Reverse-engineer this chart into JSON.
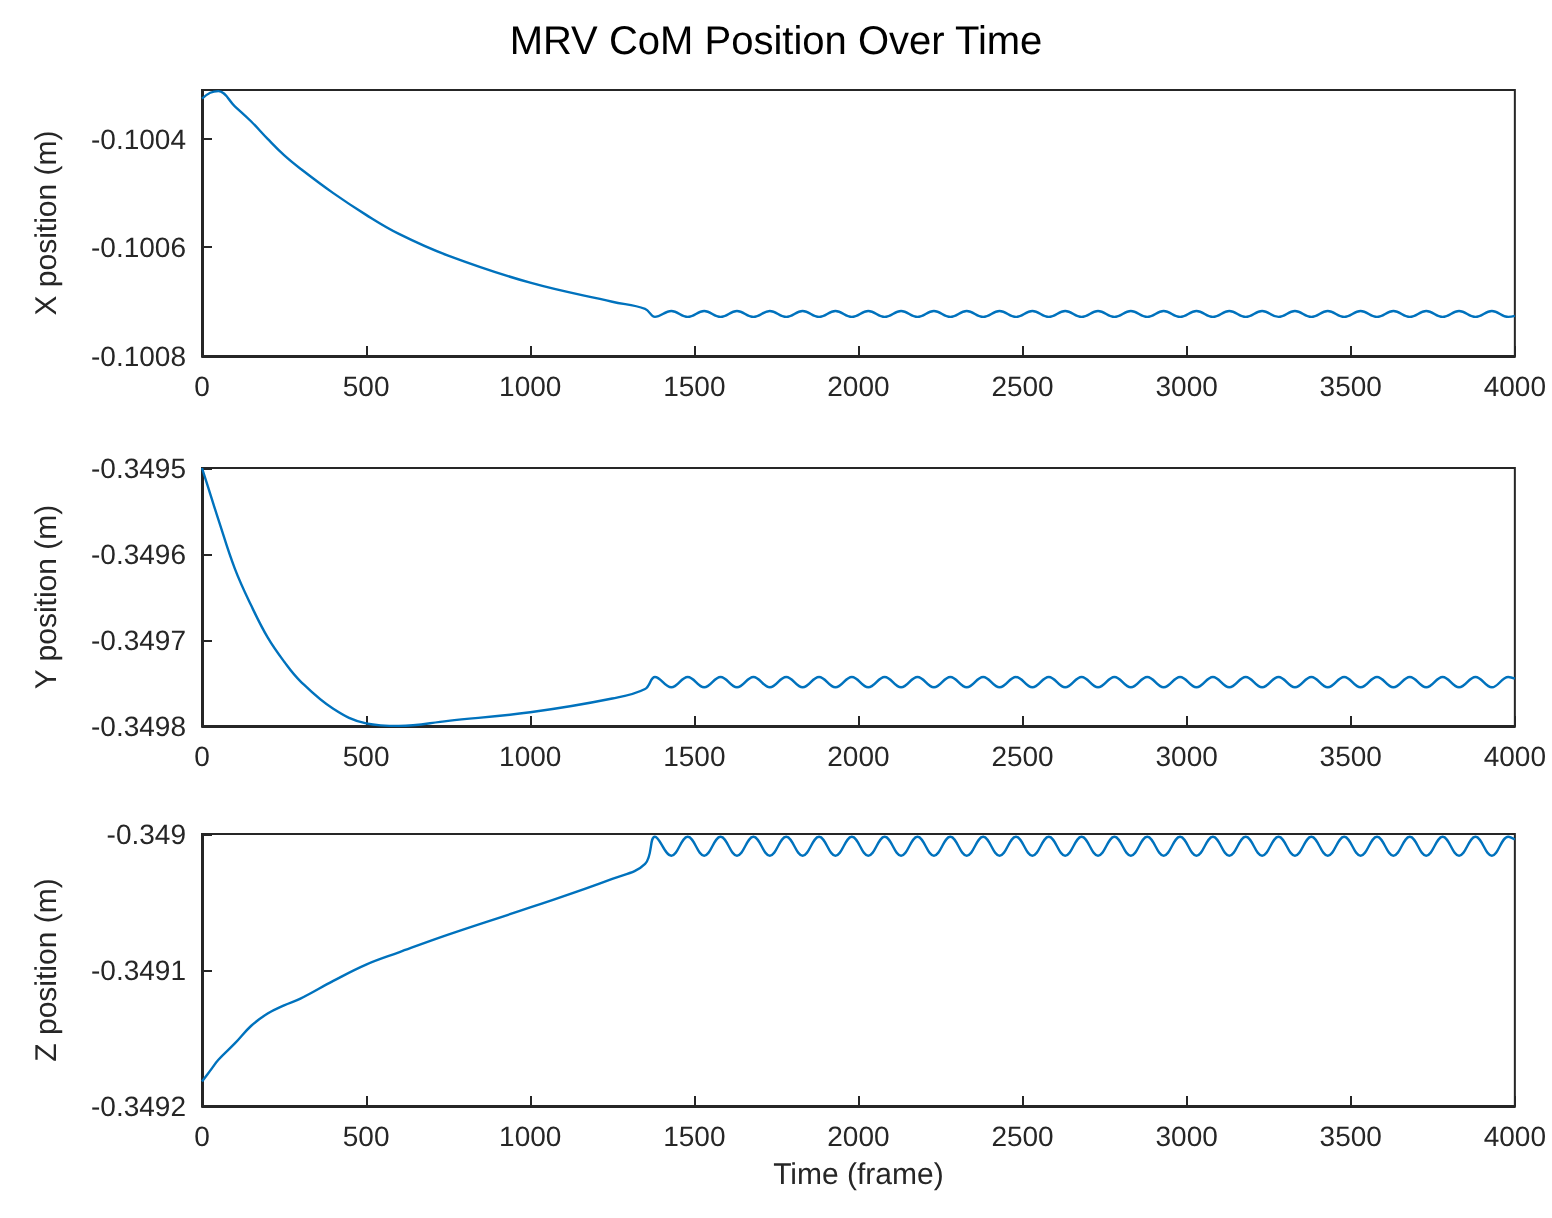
{
  "chart_data": [
    {
      "type": "line",
      "title": "MRV CoM Position Over Time",
      "ylabel": "X position (m)",
      "xlim": [
        0,
        4000
      ],
      "xticks": [
        0,
        500,
        1000,
        1500,
        2000,
        2500,
        3000,
        3500,
        4000
      ],
      "ylim": [
        -0.1008,
        -0.10031
      ],
      "yticks": [
        -0.1008,
        -0.1006,
        -0.1004
      ],
      "x": [
        0,
        25,
        50,
        100,
        150,
        200,
        250,
        300,
        400,
        500,
        600,
        750,
        1000,
        1250,
        1350,
        1380,
        1430,
        1480,
        1530,
        1580,
        1630,
        1680,
        1730,
        1780,
        1830,
        1880,
        1930,
        1980,
        2030,
        2080,
        2130,
        2180,
        2230,
        2280,
        2330,
        2380,
        2430,
        2480,
        2530,
        2580,
        2630,
        2680,
        2730,
        2780,
        2830,
        2880,
        2930,
        2980,
        3030,
        3080,
        3130,
        3180,
        3230,
        3280,
        3330,
        3380,
        3430,
        3480,
        3530,
        3580,
        3630,
        3680,
        3730,
        3780,
        3830,
        3880,
        3930,
        3980,
        4000
      ],
      "series": [
        {
          "color": "#0072bd",
          "values": [
            -0.100326,
            -0.100315,
            -0.100312,
            -0.10034,
            -0.100368,
            -0.1004,
            -0.10043,
            -0.100455,
            -0.1005,
            -0.10054,
            -0.100575,
            -0.100615,
            -0.100665,
            -0.1007,
            -0.100713,
            -0.100728,
            -0.100717,
            -0.100728,
            -0.100717,
            -0.100728,
            -0.100717,
            -0.100728,
            -0.100717,
            -0.100728,
            -0.100717,
            -0.100728,
            -0.100717,
            -0.100728,
            -0.100717,
            -0.100728,
            -0.100717,
            -0.100728,
            -0.100717,
            -0.100728,
            -0.100717,
            -0.100728,
            -0.100717,
            -0.100728,
            -0.100717,
            -0.100728,
            -0.100717,
            -0.100728,
            -0.100717,
            -0.100728,
            -0.100717,
            -0.100728,
            -0.100717,
            -0.100728,
            -0.100717,
            -0.100728,
            -0.100717,
            -0.100728,
            -0.100717,
            -0.100728,
            -0.100717,
            -0.100728,
            -0.100717,
            -0.100728,
            -0.100717,
            -0.100728,
            -0.100717,
            -0.100728,
            -0.100717,
            -0.100728,
            -0.100717,
            -0.100728,
            -0.100717,
            -0.100728,
            -0.100726
          ]
        }
      ]
    },
    {
      "type": "line",
      "ylabel": "Y position (m)",
      "xlim": [
        0,
        4000
      ],
      "xticks": [
        0,
        500,
        1000,
        1500,
        2000,
        2500,
        3000,
        3500,
        4000
      ],
      "ylim": [
        -0.3498,
        -0.3495
      ],
      "yticks": [
        -0.3498,
        -0.3497,
        -0.3496,
        -0.3495
      ],
      "x": [
        0,
        25,
        50,
        100,
        150,
        200,
        250,
        300,
        400,
        500,
        600,
        750,
        1000,
        1250,
        1350,
        1380,
        1430,
        1480,
        1530,
        1580,
        1630,
        1680,
        1730,
        1780,
        1830,
        1880,
        1930,
        1980,
        2030,
        2080,
        2130,
        2180,
        2230,
        2280,
        2330,
        2380,
        2430,
        2480,
        2530,
        2580,
        2630,
        2680,
        2730,
        2780,
        2830,
        2880,
        2930,
        2980,
        3030,
        3080,
        3130,
        3180,
        3230,
        3280,
        3330,
        3380,
        3430,
        3480,
        3530,
        3580,
        3630,
        3680,
        3730,
        3780,
        3830,
        3880,
        3930,
        3980,
        4000
      ],
      "series": [
        {
          "color": "#0072bd",
          "values": [
            -0.3495,
            -0.34953,
            -0.34956,
            -0.349617,
            -0.34966,
            -0.349697,
            -0.349725,
            -0.349748,
            -0.34978,
            -0.349797,
            -0.3498,
            -0.349794,
            -0.349784,
            -0.349768,
            -0.349757,
            -0.349743,
            -0.349755,
            -0.349743,
            -0.349755,
            -0.349743,
            -0.349755,
            -0.349743,
            -0.349755,
            -0.349743,
            -0.349755,
            -0.349743,
            -0.349755,
            -0.349743,
            -0.349755,
            -0.349743,
            -0.349755,
            -0.349743,
            -0.349755,
            -0.349743,
            -0.349755,
            -0.349743,
            -0.349755,
            -0.349743,
            -0.349755,
            -0.349743,
            -0.349755,
            -0.349743,
            -0.349755,
            -0.349743,
            -0.349755,
            -0.349743,
            -0.349755,
            -0.349743,
            -0.349755,
            -0.349743,
            -0.349755,
            -0.349743,
            -0.349755,
            -0.349743,
            -0.349755,
            -0.349743,
            -0.349755,
            -0.349743,
            -0.349755,
            -0.349743,
            -0.349755,
            -0.349743,
            -0.349755,
            -0.349743,
            -0.349755,
            -0.349743,
            -0.349755,
            -0.349743,
            -0.349745
          ]
        }
      ]
    },
    {
      "type": "line",
      "ylabel": "Z position (m)",
      "xlabel": "Time (frame)",
      "xlim": [
        0,
        4000
      ],
      "xticks": [
        0,
        500,
        1000,
        1500,
        2000,
        2500,
        3000,
        3500,
        4000
      ],
      "ylim": [
        -0.3492,
        -0.349
      ],
      "yticks": [
        -0.3492,
        -0.3491,
        -0.349
      ],
      "x": [
        0,
        25,
        50,
        100,
        150,
        200,
        250,
        300,
        400,
        500,
        600,
        750,
        1000,
        1250,
        1350,
        1380,
        1430,
        1480,
        1530,
        1580,
        1630,
        1680,
        1730,
        1780,
        1830,
        1880,
        1930,
        1980,
        2030,
        2080,
        2130,
        2180,
        2230,
        2280,
        2330,
        2380,
        2430,
        2480,
        2530,
        2580,
        2630,
        2680,
        2730,
        2780,
        2830,
        2880,
        2930,
        2980,
        3030,
        3080,
        3130,
        3180,
        3230,
        3280,
        3330,
        3380,
        3430,
        3480,
        3530,
        3580,
        3630,
        3680,
        3730,
        3780,
        3830,
        3880,
        3930,
        3980,
        4000
      ],
      "series": [
        {
          "color": "#0072bd",
          "values": [
            -0.349182,
            -0.349174,
            -0.349166,
            -0.349154,
            -0.349141,
            -0.349132,
            -0.349126,
            -0.349121,
            -0.349108,
            -0.349096,
            -0.349087,
            -0.349074,
            -0.349054,
            -0.349033,
            -0.349022,
            -0.349002,
            -0.349016,
            -0.349002,
            -0.349016,
            -0.349002,
            -0.349016,
            -0.349002,
            -0.349016,
            -0.349002,
            -0.349016,
            -0.349002,
            -0.349016,
            -0.349002,
            -0.349016,
            -0.349002,
            -0.349016,
            -0.349002,
            -0.349016,
            -0.349002,
            -0.349016,
            -0.349002,
            -0.349016,
            -0.349002,
            -0.349016,
            -0.349002,
            -0.349016,
            -0.349002,
            -0.349016,
            -0.349002,
            -0.349016,
            -0.349002,
            -0.349016,
            -0.349002,
            -0.349016,
            -0.349002,
            -0.349016,
            -0.349002,
            -0.349016,
            -0.349002,
            -0.349016,
            -0.349002,
            -0.349016,
            -0.349002,
            -0.349016,
            -0.349002,
            -0.349016,
            -0.349002,
            -0.349016,
            -0.349002,
            -0.349016,
            -0.349002,
            -0.349016,
            -0.349002,
            -0.349004
          ]
        }
      ]
    }
  ]
}
